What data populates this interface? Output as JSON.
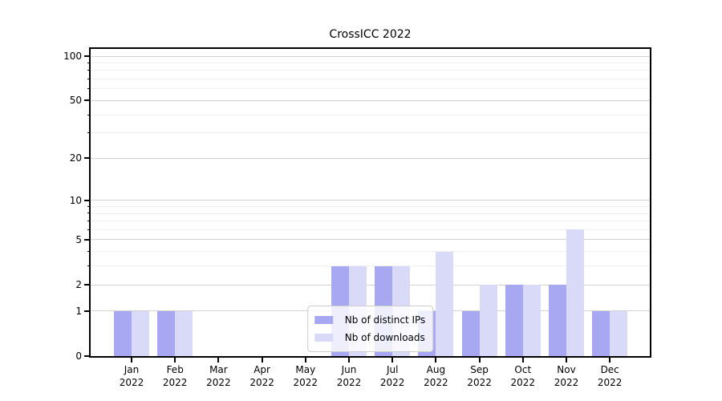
{
  "chart_data": {
    "type": "bar",
    "title": "CrossICC 2022",
    "categories": [
      "Jan",
      "Feb",
      "Mar",
      "Apr",
      "May",
      "Jun",
      "Jul",
      "Aug",
      "Sep",
      "Oct",
      "Nov",
      "Dec"
    ],
    "category_year": "2022",
    "series": [
      {
        "name": "Nb of distinct IPs",
        "color": "#a8a8f2",
        "values": [
          1,
          1,
          0,
          0,
          0,
          3,
          3,
          1,
          1,
          2,
          2,
          1
        ]
      },
      {
        "name": "Nb of downloads",
        "color": "#d9d9f8",
        "values": [
          1,
          1,
          0,
          0,
          0,
          3,
          3,
          4,
          2,
          2,
          6,
          1
        ]
      }
    ],
    "scale": "log1p",
    "ylim": [
      0,
      112
    ],
    "y_major_ticks": [
      0,
      1,
      2,
      5,
      10,
      20,
      50,
      100
    ],
    "y_minor_ticks": [
      3,
      4,
      6,
      7,
      8,
      9,
      30,
      40,
      60,
      70,
      80,
      90
    ],
    "grid": true,
    "legend_position": "lower center"
  },
  "colors": {
    "bar_dark": "#a8a8f2",
    "bar_light": "#d9d9f8",
    "grid_major": "#d2d2d2",
    "grid_minor": "#efefef",
    "axis": "#000000",
    "legend_border": "#cccccc"
  }
}
